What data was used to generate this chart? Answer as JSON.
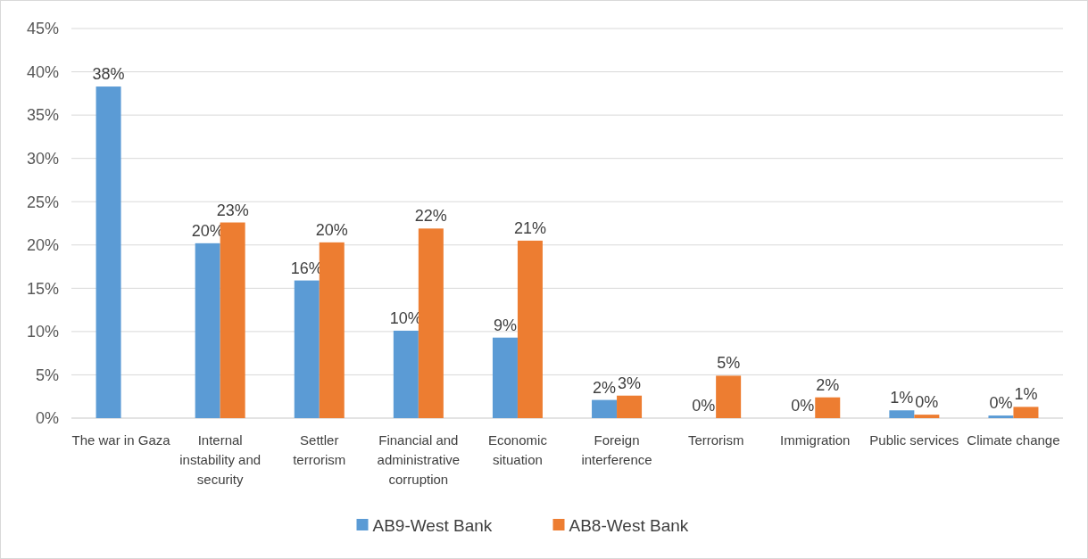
{
  "chart_data": {
    "type": "bar",
    "categories": [
      "The war in Gaza",
      "Internal instability and security",
      "Settler terrorism",
      "Financial and administrative corruption",
      "Economic situation",
      "Foreign interference",
      "Terrorism",
      "Immigration",
      "Public services",
      "Climate change"
    ],
    "series": [
      {
        "name": "AB9-West Bank",
        "color": "#5b9bd5",
        "values": [
          38.3,
          20.2,
          15.9,
          10.1,
          9.3,
          2.1,
          0,
          0,
          0.9,
          0.3
        ],
        "value_labels": [
          "38%",
          "20%",
          "16%",
          "10%",
          "9%",
          "2%",
          "0%",
          "0%",
          "1%",
          "0%"
        ]
      },
      {
        "name": "AB8-West Bank",
        "color": "#ed7d31",
        "values": [
          null,
          22.6,
          20.3,
          21.9,
          20.5,
          2.6,
          4.9,
          2.4,
          0.4,
          1.3
        ],
        "value_labels": [
          null,
          "23%",
          "20%",
          "22%",
          "21%",
          "3%",
          "5%",
          "2%",
          "0%",
          "1%"
        ]
      }
    ],
    "ylim": [
      0,
      45
    ],
    "yticks": [
      {
        "value": 0,
        "label": "0%"
      },
      {
        "value": 5,
        "label": "5%"
      },
      {
        "value": 10,
        "label": "10%"
      },
      {
        "value": 15,
        "label": "15%"
      },
      {
        "value": 20,
        "label": "20%"
      },
      {
        "value": 25,
        "label": "25%"
      },
      {
        "value": 30,
        "label": "30%"
      },
      {
        "value": 35,
        "label": "35%"
      },
      {
        "value": 40,
        "label": "40%"
      },
      {
        "value": 45,
        "label": "45%"
      }
    ],
    "grid": "y",
    "legend": "bottom"
  }
}
